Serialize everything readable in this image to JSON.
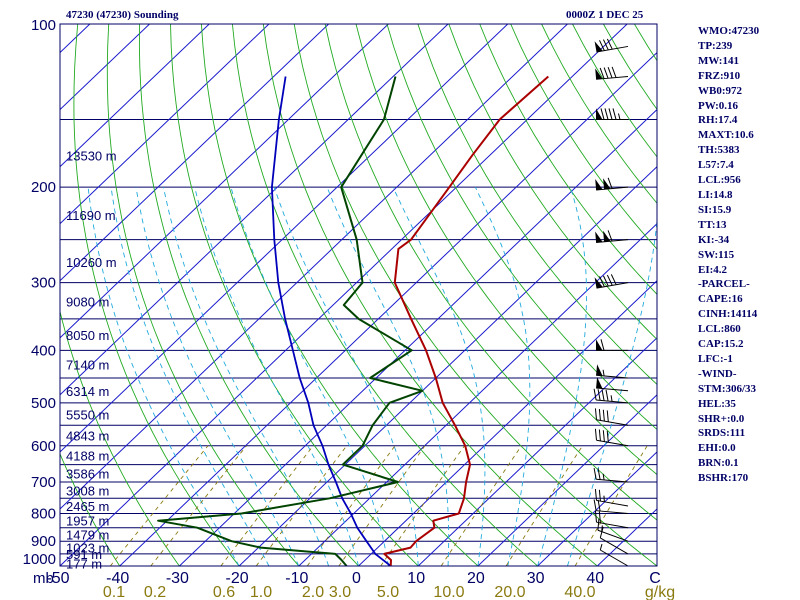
{
  "header": {
    "station_title": "47230 (47230) Sounding",
    "time_label": "0000Z  1 DEC 25"
  },
  "indices": [
    "WMO:47230",
    "TP:239",
    "MW:141",
    "FRZ:910",
    "WB0:972",
    "PW:0.16",
    "RH:17.4",
    "MAXT:10.6",
    "TH:5383",
    "L57:7.4",
    "LCL:956",
    "LI:14.8",
    "SI:15.9",
    "TT:13",
    "KI:-34",
    "SW:115",
    "EI:4.2",
    "-PARCEL-",
    "CAPE:16",
    "CINH:14114",
    "LCL:860",
    "CAP:15.2",
    "LFC:-1",
    "-WIND-",
    "STM:306/33",
    "HEL:35",
    "SHR+:0.0",
    "SRDS:111",
    "EHI:0.0",
    "BRN:0.1",
    "BSHR:170"
  ],
  "colors": {
    "isobar": "#000066",
    "isotherm": "#1a1acc",
    "dry_adiabat": "#22aa22",
    "moist_adiabat": "#22aadd",
    "mixing_ratio": "#8a7a10",
    "temperature": "#aa0000",
    "dewpoint": "#004400",
    "parcel": "#0000bb",
    "wind_barb": "#000000"
  },
  "chart_data": {
    "type": "skew-t",
    "pressure_unit_label": "mb",
    "pressure_range": [
      1000,
      100
    ],
    "temperature_range": [
      -50,
      50
    ],
    "pressure_tick_labels": [
      "1000",
      "900",
      "800",
      "700",
      "600",
      "500",
      "400",
      "300",
      "200",
      "100"
    ],
    "pressure_ticks": [
      1000,
      900,
      800,
      700,
      600,
      500,
      400,
      300,
      200,
      100
    ],
    "temperature_tick_labels": [
      "-50",
      "-40",
      "-30",
      "-20",
      "-10",
      "0",
      "10",
      "20",
      "30",
      "40",
      "C"
    ],
    "temperature_ticks": [
      -50,
      -40,
      -30,
      -20,
      -10,
      0,
      10,
      20,
      30,
      40,
      50
    ],
    "mixing_ratio_unit_label": "g/kg",
    "mixing_ratio_labels": [
      "0.1",
      "0.2",
      "0.6",
      "1.0",
      "2.0",
      "3.0",
      "5.0",
      "10.0",
      "20.0",
      "40.0"
    ],
    "mixing_ratio_values": [
      0.1,
      0.2,
      0.6,
      1.0,
      2.0,
      3.0,
      5.0,
      10.0,
      20.0,
      40.0
    ],
    "height_labels": [
      {
        "p": 990,
        "label": "177 m"
      },
      {
        "p": 950,
        "label": "591 m"
      },
      {
        "p": 925,
        "label": "1023 m"
      },
      {
        "p": 875,
        "label": "1479 m"
      },
      {
        "p": 825,
        "label": "1957 m"
      },
      {
        "p": 775,
        "label": "2465 m"
      },
      {
        "p": 725,
        "label": "3008 m"
      },
      {
        "p": 675,
        "label": "3586 m"
      },
      {
        "p": 625,
        "label": "4188 m"
      },
      {
        "p": 575,
        "label": "4843 m"
      },
      {
        "p": 525,
        "label": "5550 m"
      },
      {
        "p": 475,
        "label": "6314 m"
      },
      {
        "p": 425,
        "label": "7140 m"
      },
      {
        "p": 375,
        "label": "8050 m"
      },
      {
        "p": 325,
        "label": "9080 m"
      },
      {
        "p": 275,
        "label": "10260 m"
      },
      {
        "p": 225,
        "label": "11690 m"
      },
      {
        "p": 175,
        "label": "13530 m"
      }
    ],
    "temperature_profile": [
      {
        "p": 1000,
        "t": 5.4
      },
      {
        "p": 975,
        "t": 4.4
      },
      {
        "p": 950,
        "t": 2.2
      },
      {
        "p": 925,
        "t": 5.5
      },
      {
        "p": 900,
        "t": 5.3
      },
      {
        "p": 850,
        "t": 6.0
      },
      {
        "p": 825,
        "t": 4.6
      },
      {
        "p": 800,
        "t": 7.6
      },
      {
        "p": 750,
        "t": 5.8
      },
      {
        "p": 700,
        "t": 3.3
      },
      {
        "p": 650,
        "t": 0.9
      },
      {
        "p": 600,
        "t": -3.2
      },
      {
        "p": 550,
        "t": -8.5
      },
      {
        "p": 500,
        "t": -14.5
      },
      {
        "p": 450,
        "t": -20.0
      },
      {
        "p": 400,
        "t": -26.5
      },
      {
        "p": 350,
        "t": -34.5
      },
      {
        "p": 300,
        "t": -43.6
      },
      {
        "p": 260,
        "t": -48.9
      },
      {
        "p": 250,
        "t": -48.4
      },
      {
        "p": 200,
        "t": -51.2
      },
      {
        "p": 175,
        "t": -52.9
      },
      {
        "p": 150,
        "t": -54.6
      },
      {
        "p": 125,
        "t": -54.0
      }
    ],
    "dewpoint_profile": [
      {
        "p": 1000,
        "t": -2.0
      },
      {
        "p": 975,
        "t": -3.9
      },
      {
        "p": 950,
        "t": -6.0
      },
      {
        "p": 925,
        "t": -19.6
      },
      {
        "p": 900,
        "t": -25.6
      },
      {
        "p": 850,
        "t": -33.7
      },
      {
        "p": 825,
        "t": -41.5
      },
      {
        "p": 800,
        "t": -28.8
      },
      {
        "p": 750,
        "t": -16.7
      },
      {
        "p": 700,
        "t": -8.1
      },
      {
        "p": 650,
        "t": -20.4
      },
      {
        "p": 600,
        "t": -20.4
      },
      {
        "p": 550,
        "t": -22.3
      },
      {
        "p": 500,
        "t": -23.4
      },
      {
        "p": 475,
        "t": -20.0
      },
      {
        "p": 450,
        "t": -31.0
      },
      {
        "p": 400,
        "t": -28.9
      },
      {
        "p": 350,
        "t": -43.3
      },
      {
        "p": 330,
        "t": -48.2
      },
      {
        "p": 300,
        "t": -49.0
      },
      {
        "p": 250,
        "t": -57.5
      },
      {
        "p": 200,
        "t": -69.3
      },
      {
        "p": 150,
        "t": -74.0
      },
      {
        "p": 125,
        "t": -79.6
      }
    ],
    "parcel_profile": [
      {
        "p": 1000,
        "t": 5.4
      },
      {
        "p": 950,
        "t": 0.7
      },
      {
        "p": 900,
        "t": -3.0
      },
      {
        "p": 850,
        "t": -6.9
      },
      {
        "p": 800,
        "t": -10.5
      },
      {
        "p": 750,
        "t": -14.6
      },
      {
        "p": 700,
        "t": -18.5
      },
      {
        "p": 650,
        "t": -22.8
      },
      {
        "p": 600,
        "t": -27.1
      },
      {
        "p": 550,
        "t": -32.2
      },
      {
        "p": 500,
        "t": -37.0
      },
      {
        "p": 450,
        "t": -42.8
      },
      {
        "p": 400,
        "t": -48.8
      },
      {
        "p": 350,
        "t": -55.6
      },
      {
        "p": 300,
        "t": -63.1
      },
      {
        "p": 250,
        "t": -71.3
      },
      {
        "p": 200,
        "t": -80.9
      },
      {
        "p": 150,
        "t": -91.6
      },
      {
        "p": 125,
        "t": -98.0
      }
    ],
    "wind_barbs": [
      {
        "p": 1000,
        "dir": 300,
        "spd": 5
      },
      {
        "p": 950,
        "dir": 300,
        "spd": 10
      },
      {
        "p": 900,
        "dir": 290,
        "spd": 15
      },
      {
        "p": 850,
        "dir": 280,
        "spd": 20
      },
      {
        "p": 800,
        "dir": 275,
        "spd": 20
      },
      {
        "p": 775,
        "dir": 280,
        "spd": 25
      },
      {
        "p": 700,
        "dir": 275,
        "spd": 25
      },
      {
        "p": 600,
        "dir": 280,
        "spd": 40
      },
      {
        "p": 550,
        "dir": 280,
        "spd": 40
      },
      {
        "p": 500,
        "dir": 275,
        "spd": 45
      },
      {
        "p": 475,
        "dir": 275,
        "spd": 50
      },
      {
        "p": 450,
        "dir": 275,
        "spd": 55
      },
      {
        "p": 400,
        "dir": 270,
        "spd": 60
      },
      {
        "p": 300,
        "dir": 260,
        "spd": 90
      },
      {
        "p": 250,
        "dir": 265,
        "spd": 110
      },
      {
        "p": 200,
        "dir": 265,
        "spd": 110
      },
      {
        "p": 150,
        "dir": 270,
        "spd": 95
      },
      {
        "p": 125,
        "dir": 265,
        "spd": 90
      },
      {
        "p": 110,
        "dir": 260,
        "spd": 80
      }
    ]
  }
}
